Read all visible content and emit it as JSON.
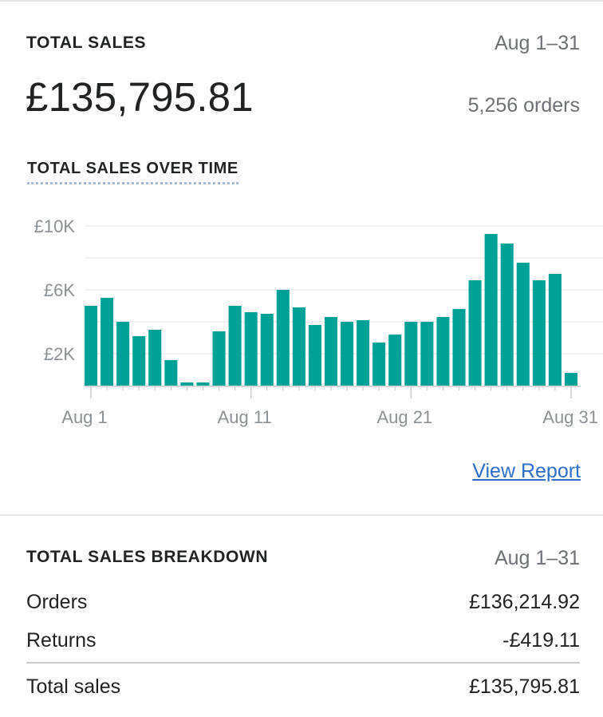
{
  "summary": {
    "title": "TOTAL SALES",
    "date_range": "Aug 1–31",
    "total": "£135,795.81",
    "orders": "5,256 orders"
  },
  "chart_section": {
    "title": "TOTAL SALES OVER TIME",
    "view_report_label": "View Report"
  },
  "chart_data": {
    "type": "bar",
    "title": "TOTAL SALES OVER TIME",
    "xlabel": "",
    "ylabel": "",
    "categories": [
      "Aug 1",
      "Aug 2",
      "Aug 3",
      "Aug 4",
      "Aug 5",
      "Aug 6",
      "Aug 7",
      "Aug 8",
      "Aug 9",
      "Aug 10",
      "Aug 11",
      "Aug 12",
      "Aug 13",
      "Aug 14",
      "Aug 15",
      "Aug 16",
      "Aug 17",
      "Aug 18",
      "Aug 19",
      "Aug 20",
      "Aug 21",
      "Aug 22",
      "Aug 23",
      "Aug 24",
      "Aug 25",
      "Aug 26",
      "Aug 27",
      "Aug 28",
      "Aug 29",
      "Aug 30",
      "Aug 31"
    ],
    "values": [
      5000,
      5500,
      4000,
      3100,
      3500,
      1600,
      200,
      200,
      3400,
      5000,
      4600,
      4500,
      6000,
      4900,
      3800,
      4300,
      4000,
      4100,
      2700,
      3200,
      4000,
      4000,
      4300,
      4800,
      6600,
      9500,
      8900,
      7700,
      6600,
      7000,
      800
    ],
    "ylim": [
      0,
      10000
    ],
    "y_ticks": [
      {
        "value": 10000,
        "label": "£10K"
      },
      {
        "value": 6000,
        "label": "£6K"
      },
      {
        "value": 2000,
        "label": "£2K"
      }
    ],
    "gridlines": [
      10000,
      8000,
      6000,
      4000,
      2000
    ],
    "x_ticks": [
      {
        "index": 0,
        "label": "Aug 1"
      },
      {
        "index": 10,
        "label": "Aug 11"
      },
      {
        "index": 20,
        "label": "Aug 21"
      },
      {
        "index": 30,
        "label": "Aug 31"
      }
    ],
    "grid": true,
    "bar_color": "#00a196",
    "grid_color": "#ebedef"
  },
  "breakdown": {
    "title": "TOTAL SALES BREAKDOWN",
    "date_range": "Aug 1–31",
    "rows": [
      {
        "label": "Orders",
        "value": "£136,214.92"
      },
      {
        "label": "Returns",
        "value": "-£419.11"
      }
    ],
    "total": {
      "label": "Total sales",
      "value": "£135,795.81"
    }
  }
}
